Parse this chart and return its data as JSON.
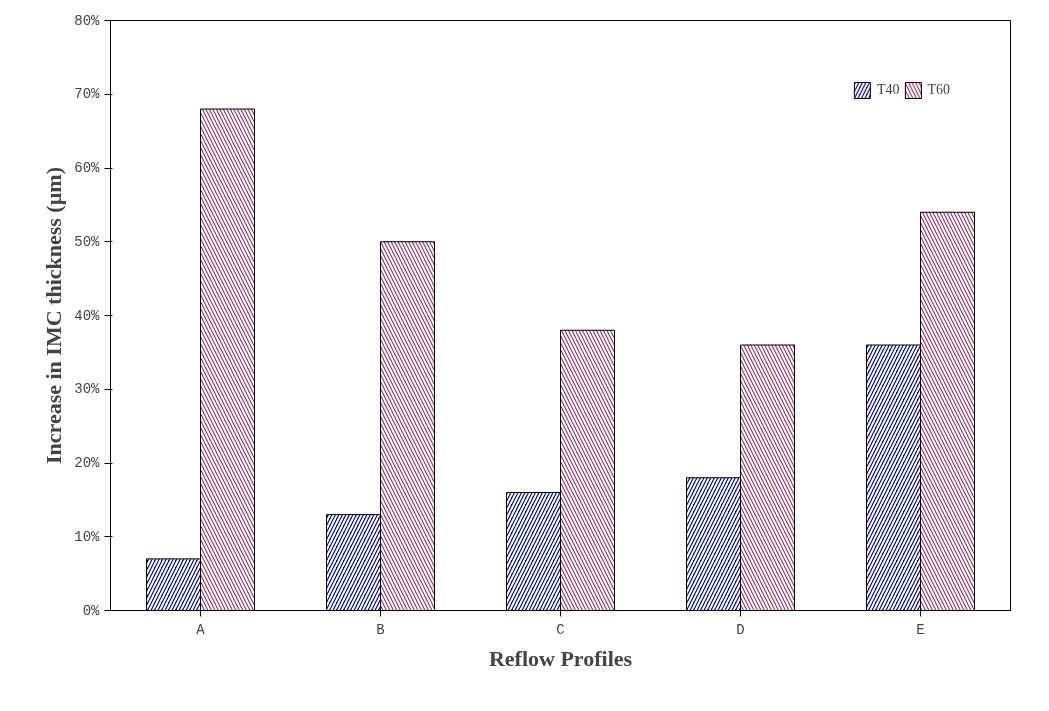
{
  "chart_data": {
    "type": "bar",
    "xlabel": "Reflow Profiles",
    "ylabel": "Increase in IMC thickness (µm)",
    "categories": [
      "A",
      "B",
      "C",
      "D",
      "E"
    ],
    "series": [
      {
        "name": "T40",
        "color": "#000080",
        "values": [
          7,
          13,
          16,
          18,
          36
        ]
      },
      {
        "name": "T60",
        "color": "#993366",
        "values": [
          68,
          50,
          38,
          36,
          54
        ]
      }
    ],
    "ylim": [
      0,
      80
    ],
    "yticks": [
      {
        "value": 0,
        "label": "0%"
      },
      {
        "value": 10,
        "label": "10%"
      },
      {
        "value": 20,
        "label": "20%"
      },
      {
        "value": 30,
        "label": "30%"
      },
      {
        "value": 40,
        "label": "40%"
      },
      {
        "value": 50,
        "label": "50%"
      },
      {
        "value": 60,
        "label": "60%"
      },
      {
        "value": 70,
        "label": "70%"
      },
      {
        "value": 80,
        "label": "80%"
      }
    ],
    "grid": false,
    "legend": "top right"
  }
}
